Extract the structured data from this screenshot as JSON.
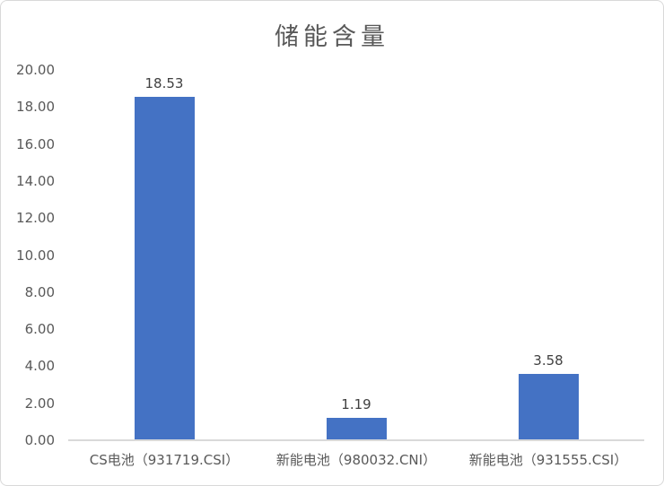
{
  "chart_data": {
    "type": "bar",
    "title": "储能含量",
    "categories": [
      "CS电池（931719.CSI）",
      "新能电池（980032.CNI）",
      "新能电池（931555.CSI）"
    ],
    "values": [
      18.53,
      1.19,
      3.58
    ],
    "data_labels": [
      "18.53",
      "1.19",
      "3.58"
    ],
    "xlabel": "",
    "ylabel": "",
    "ylim": [
      0,
      20
    ],
    "ytick_labels": [
      "0.00",
      "2.00",
      "4.00",
      "6.00",
      "8.00",
      "10.00",
      "12.00",
      "14.00",
      "16.00",
      "18.00",
      "20.00"
    ],
    "grid": false,
    "legend": "none",
    "colors": {
      "bar": "#4472C4",
      "axis_line": "#D9D9D9",
      "axis_text": "#595959",
      "data_label_text": "#404040",
      "title_text": "#595959",
      "frame_border": "#D9D9D9",
      "background": "#FFFFFF"
    }
  }
}
